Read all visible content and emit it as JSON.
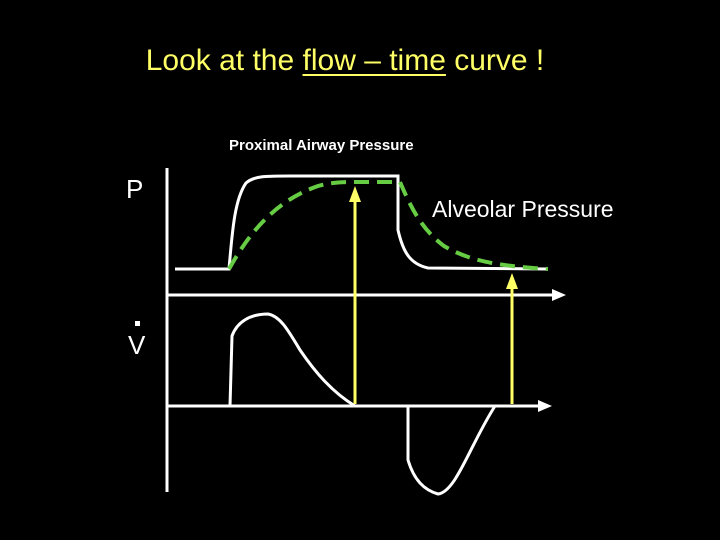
{
  "slide": {
    "title_pre": "Look at the ",
    "title_underlined": "flow – time",
    "title_post": " curve !",
    "proximal_label": "Proximal Airway Pressure",
    "alveolar_label": "Alveolar Pressure",
    "pressure_axis_label": "P",
    "flow_axis_label": "V"
  },
  "colors": {
    "background": "#000000",
    "title": "#FFFF66",
    "proximal_curve": "#FFFFFF",
    "alveolar_curve": "#66CC44",
    "arrows": "#FFFF66"
  }
}
